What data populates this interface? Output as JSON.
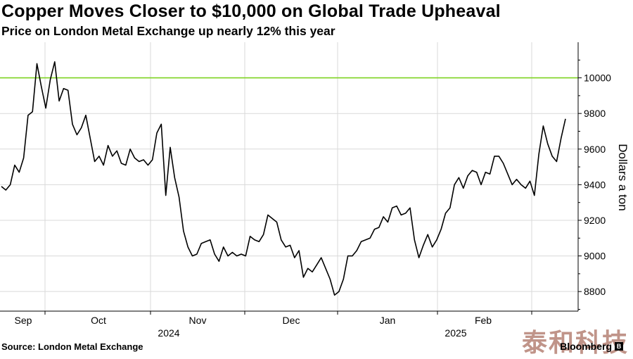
{
  "header": {
    "title": "Copper Moves Closer to $10,000 on Global Trade Upheaval",
    "subtitle": "Price on London Metal Exchange up nearly 12% this year"
  },
  "footer": {
    "source": "Source: London Metal Exchange",
    "brand": "Bloomberg",
    "brand_icon": "bloomberg-logo-icon",
    "watermark": "泰和科技"
  },
  "colors": {
    "line": "#000000",
    "reference_line": "#7ed321",
    "gridline": "#d9d9d9",
    "axis": "#000000"
  },
  "chart_data": {
    "type": "line",
    "title": "Copper Moves Closer to $10,000 on Global Trade Upheaval",
    "subtitle": "Price on London Metal Exchange up nearly 12% this year",
    "ylabel": "Dollars a ton",
    "xlabel": "",
    "ylim": [
      8690,
      10200
    ],
    "yticks": [
      8800,
      9000,
      9200,
      9400,
      9600,
      9800,
      10000
    ],
    "grid": true,
    "legend": "none",
    "x_tick_labels": [
      "Sep",
      "Oct",
      "Nov",
      "Dec",
      "Jan",
      "Feb"
    ],
    "x_year_labels": [
      "2024",
      "2025"
    ],
    "reference_line": {
      "y": 10000,
      "color": "#7ed321"
    },
    "series": [
      {
        "values": [
          9390,
          9370,
          9400,
          9510,
          9470,
          9550,
          9790,
          9810,
          10080,
          9950,
          9830,
          9990,
          10090,
          9870,
          9940,
          9930,
          9740,
          9680,
          9720,
          9790,
          9660,
          9530,
          9560,
          9510,
          9620,
          9560,
          9590,
          9520,
          9510,
          9600,
          9550,
          9530,
          9540,
          9510,
          9540,
          9690,
          9740,
          9340,
          9610,
          9440,
          9330,
          9140,
          9050,
          9000,
          9010,
          9070,
          9080,
          9090,
          9010,
          8970,
          9050,
          9000,
          9020,
          9000,
          9010,
          9000,
          9110,
          9090,
          9080,
          9120,
          9230,
          9210,
          9190,
          9090,
          9050,
          9060,
          8990,
          9030,
          8880,
          8930,
          8910,
          8950,
          8990,
          8930,
          8870,
          8780,
          8800,
          8870,
          9000,
          9000,
          9030,
          9080,
          9090,
          9100,
          9150,
          9160,
          9220,
          9190,
          9270,
          9280,
          9230,
          9240,
          9270,
          9090,
          8990,
          9060,
          9120,
          9050,
          9090,
          9150,
          9240,
          9270,
          9400,
          9440,
          9380,
          9450,
          9480,
          9470,
          9400,
          9470,
          9460,
          9560,
          9560,
          9520,
          9460,
          9400,
          9430,
          9400,
          9380,
          9420,
          9340,
          9570,
          9730,
          9630,
          9560,
          9530,
          9660,
          9770
        ]
      }
    ]
  }
}
